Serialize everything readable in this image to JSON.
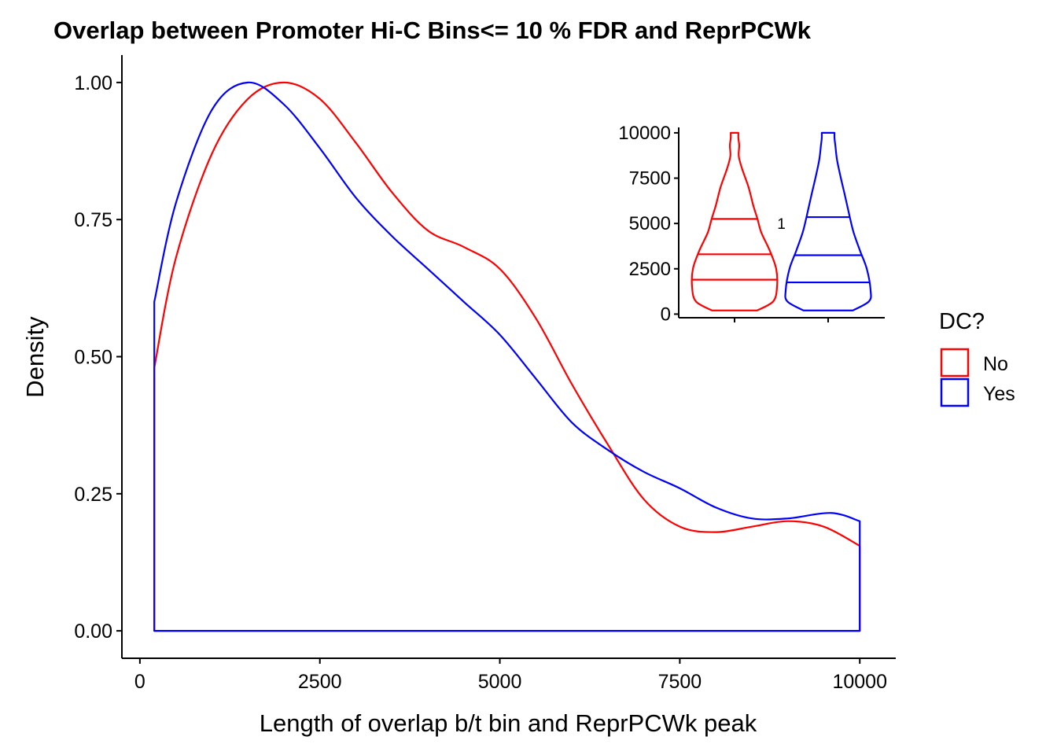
{
  "chart_data": {
    "type": "area",
    "title": "Overlap between Promoter Hi-C Bins<= 10 % FDR and ReprPCWk",
    "xlabel": "Length of overlap b/t bin and ReprPCWk peak",
    "ylabel": "Density",
    "xlim": [
      -250,
      10500
    ],
    "ylim": [
      -0.05,
      1.05
    ],
    "x_ticks": [
      0,
      2500,
      5000,
      7500,
      10000
    ],
    "x_tick_labels": [
      "0",
      "2500",
      "5000",
      "7500",
      "10000"
    ],
    "y_ticks": [
      0,
      0.25,
      0.5,
      0.75,
      1.0
    ],
    "y_tick_labels": [
      "0.00",
      "0.25",
      "0.50",
      "0.75",
      "1.00"
    ],
    "grid": false,
    "legend": {
      "title": "DC?",
      "position": "right",
      "entries": [
        {
          "label": "No",
          "color": "#ff0000"
        },
        {
          "label": "Yes",
          "color": "#0000ff"
        }
      ]
    },
    "series": [
      {
        "name": "No",
        "color": "#ff0000",
        "x": [
          200,
          500,
          1000,
          1500,
          2000,
          2500,
          3000,
          3500,
          4000,
          4500,
          5000,
          5500,
          6000,
          6500,
          7000,
          7500,
          8000,
          8500,
          9000,
          9500,
          10000
        ],
        "y": [
          0.48,
          0.68,
          0.87,
          0.97,
          1.0,
          0.97,
          0.89,
          0.8,
          0.73,
          0.7,
          0.66,
          0.57,
          0.45,
          0.34,
          0.24,
          0.19,
          0.18,
          0.19,
          0.2,
          0.19,
          0.155
        ]
      },
      {
        "name": "Yes",
        "color": "#0000ff",
        "x": [
          200,
          500,
          1000,
          1500,
          2000,
          2500,
          3000,
          3500,
          4000,
          4500,
          5000,
          5500,
          6000,
          6500,
          7000,
          7500,
          8000,
          8500,
          9000,
          9600,
          10000
        ],
        "y": [
          0.6,
          0.78,
          0.95,
          1.0,
          0.96,
          0.88,
          0.79,
          0.72,
          0.66,
          0.6,
          0.54,
          0.46,
          0.38,
          0.33,
          0.29,
          0.26,
          0.225,
          0.205,
          0.205,
          0.215,
          0.2
        ]
      }
    ],
    "inset": {
      "type": "violin",
      "ylim": [
        -200,
        10300
      ],
      "y_ticks": [
        0,
        2500,
        5000,
        7500,
        10000
      ],
      "y_tick_labels": [
        "0",
        "2500",
        "5000",
        "7500",
        "10000"
      ],
      "annotation": "1",
      "series": [
        {
          "name": "No",
          "color": "#ff0000",
          "quantiles": [
            1900,
            3300,
            5250
          ],
          "profile": [
            [
              200,
              0.53
            ],
            [
              700,
              0.91
            ],
            [
              1500,
              1.0
            ],
            [
              2500,
              0.98
            ],
            [
              3500,
              0.83
            ],
            [
              4500,
              0.63
            ],
            [
              5250,
              0.54
            ],
            [
              6000,
              0.44
            ],
            [
              7000,
              0.33
            ],
            [
              8000,
              0.18
            ],
            [
              8700,
              0.1
            ],
            [
              9300,
              0.11
            ],
            [
              9700,
              0.09
            ],
            [
              10000,
              0.09
            ]
          ]
        },
        {
          "name": "Yes",
          "color": "#0000ff",
          "quantiles": [
            1750,
            3250,
            5350
          ],
          "profile": [
            [
              200,
              0.58
            ],
            [
              700,
              0.96
            ],
            [
              1300,
              1.0
            ],
            [
              2500,
              0.91
            ],
            [
              3500,
              0.75
            ],
            [
              4500,
              0.6
            ],
            [
              5350,
              0.51
            ],
            [
              6500,
              0.4
            ],
            [
              7500,
              0.3
            ],
            [
              8500,
              0.21
            ],
            [
              9300,
              0.17
            ],
            [
              9700,
              0.15
            ],
            [
              10000,
              0.15
            ]
          ]
        }
      ]
    }
  }
}
